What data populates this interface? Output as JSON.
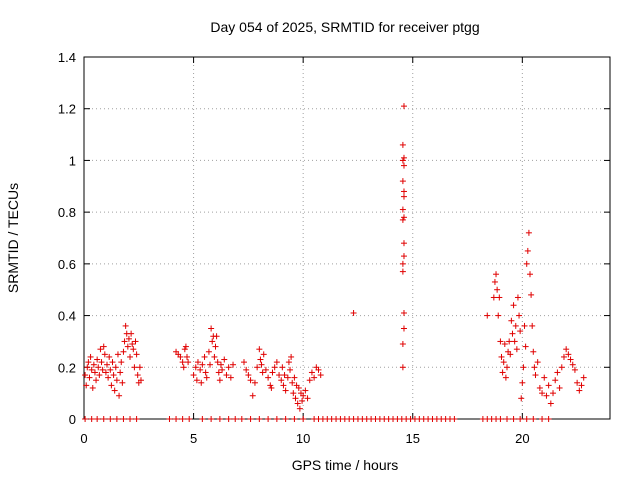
{
  "chart_data": {
    "type": "scatter",
    "title": "Day 054 of 2025, SRMTID for receiver ptgg",
    "xlabel": "GPS time / hours",
    "ylabel": "SRMTID / TECUs",
    "xlim": [
      0,
      24
    ],
    "ylim": [
      0,
      1.4
    ],
    "xticks": [
      0,
      5,
      10,
      15,
      20
    ],
    "xtick_labels": [
      "0",
      "5",
      "10",
      "15",
      "20"
    ],
    "yticks": [
      0,
      0.2,
      0.4,
      0.6,
      0.8,
      1.0,
      1.2,
      1.4
    ],
    "ytick_labels": [
      "0",
      "0.2",
      "0.4",
      "0.6",
      "0.8",
      "1",
      "1.2",
      "1.4"
    ],
    "grid": true,
    "marker": "+",
    "color": "#e00000",
    "series": [
      {
        "name": "SRMTID",
        "points": [
          [
            0.05,
            0.17
          ],
          [
            0.1,
            0.13
          ],
          [
            0.15,
            0.2
          ],
          [
            0.2,
            0.22
          ],
          [
            0.25,
            0.16
          ],
          [
            0.3,
            0.24
          ],
          [
            0.35,
            0.19
          ],
          [
            0.4,
            0.12
          ],
          [
            0.45,
            0.21
          ],
          [
            0.5,
            0.18
          ],
          [
            0.55,
            0.15
          ],
          [
            0.6,
            0.23
          ],
          [
            0.65,
            0.2
          ],
          [
            0.7,
            0.17
          ],
          [
            0.75,
            0.27
          ],
          [
            0.8,
            0.22
          ],
          [
            0.85,
            0.19
          ],
          [
            0.9,
            0.28
          ],
          [
            0.95,
            0.25
          ],
          [
            1.0,
            0.18
          ],
          [
            1.05,
            0.21
          ],
          [
            1.1,
            0.16
          ],
          [
            1.15,
            0.24
          ],
          [
            1.2,
            0.19
          ],
          [
            1.25,
            0.13
          ],
          [
            1.3,
            0.22
          ],
          [
            1.35,
            0.17
          ],
          [
            1.4,
            0.11
          ],
          [
            1.45,
            0.2
          ],
          [
            1.5,
            0.15
          ],
          [
            1.55,
            0.25
          ],
          [
            1.6,
            0.09
          ],
          [
            1.65,
            0.18
          ],
          [
            1.7,
            0.22
          ],
          [
            1.75,
            0.14
          ],
          [
            1.8,
            0.26
          ],
          [
            1.85,
            0.3
          ],
          [
            1.9,
            0.36
          ],
          [
            1.95,
            0.33
          ],
          [
            2.0,
            0.28
          ],
          [
            2.05,
            0.31
          ],
          [
            2.1,
            0.24
          ],
          [
            2.15,
            0.33
          ],
          [
            2.2,
            0.29
          ],
          [
            2.25,
            0.27
          ],
          [
            2.3,
            0.2
          ],
          [
            2.35,
            0.3
          ],
          [
            2.4,
            0.25
          ],
          [
            2.45,
            0.17
          ],
          [
            2.5,
            0.14
          ],
          [
            2.55,
            0.2
          ],
          [
            2.6,
            0.15
          ],
          [
            4.2,
            0.26
          ],
          [
            4.3,
            0.25
          ],
          [
            4.4,
            0.24
          ],
          [
            4.5,
            0.22
          ],
          [
            4.55,
            0.2
          ],
          [
            4.6,
            0.27
          ],
          [
            4.65,
            0.28
          ],
          [
            4.7,
            0.24
          ],
          [
            4.75,
            0.22
          ],
          [
            5.0,
            0.17
          ],
          [
            5.1,
            0.2
          ],
          [
            5.15,
            0.15
          ],
          [
            5.2,
            0.22
          ],
          [
            5.3,
            0.19
          ],
          [
            5.35,
            0.14
          ],
          [
            5.4,
            0.21
          ],
          [
            5.5,
            0.24
          ],
          [
            5.55,
            0.18
          ],
          [
            5.6,
            0.16
          ],
          [
            5.7,
            0.26
          ],
          [
            5.75,
            0.21
          ],
          [
            5.8,
            0.35
          ],
          [
            5.85,
            0.3
          ],
          [
            5.9,
            0.32
          ],
          [
            5.95,
            0.24
          ],
          [
            6.0,
            0.28
          ],
          [
            6.05,
            0.32
          ],
          [
            6.1,
            0.22
          ],
          [
            6.15,
            0.18
          ],
          [
            6.2,
            0.15
          ],
          [
            6.25,
            0.21
          ],
          [
            6.3,
            0.19
          ],
          [
            6.4,
            0.23
          ],
          [
            6.5,
            0.17
          ],
          [
            6.6,
            0.2
          ],
          [
            6.7,
            0.16
          ],
          [
            6.8,
            0.21
          ],
          [
            7.3,
            0.22
          ],
          [
            7.4,
            0.19
          ],
          [
            7.5,
            0.17
          ],
          [
            7.6,
            0.15
          ],
          [
            7.7,
            0.09
          ],
          [
            7.8,
            0.14
          ],
          [
            7.9,
            0.2
          ],
          [
            8.0,
            0.27
          ],
          [
            8.05,
            0.23
          ],
          [
            8.1,
            0.21
          ],
          [
            8.15,
            0.18
          ],
          [
            8.2,
            0.25
          ],
          [
            8.3,
            0.19
          ],
          [
            8.4,
            0.16
          ],
          [
            8.5,
            0.13
          ],
          [
            8.55,
            0.12
          ],
          [
            8.6,
            0.18
          ],
          [
            8.7,
            0.2
          ],
          [
            8.8,
            0.22
          ],
          [
            8.9,
            0.17
          ],
          [
            9.0,
            0.15
          ],
          [
            9.05,
            0.2
          ],
          [
            9.1,
            0.13
          ],
          [
            9.15,
            0.17
          ],
          [
            9.2,
            0.11
          ],
          [
            9.3,
            0.16
          ],
          [
            9.35,
            0.22
          ],
          [
            9.4,
            0.19
          ],
          [
            9.45,
            0.24
          ],
          [
            9.5,
            0.14
          ],
          [
            9.55,
            0.1
          ],
          [
            9.6,
            0.16
          ],
          [
            9.65,
            0.08
          ],
          [
            9.7,
            0.13
          ],
          [
            9.75,
            0.06
          ],
          [
            9.8,
            0.12
          ],
          [
            9.85,
            0.04
          ],
          [
            9.9,
            0.1
          ],
          [
            9.95,
            0.07
          ],
          [
            10.0,
            0.09
          ],
          [
            10.1,
            0.11
          ],
          [
            10.2,
            0.08
          ],
          [
            10.3,
            0.15
          ],
          [
            10.4,
            0.18
          ],
          [
            10.5,
            0.16
          ],
          [
            10.6,
            0.2
          ],
          [
            10.7,
            0.19
          ],
          [
            10.8,
            0.17
          ],
          [
            12.3,
            0.41
          ],
          [
            14.55,
            0.2
          ],
          [
            14.55,
            0.29
          ],
          [
            14.6,
            0.35
          ],
          [
            14.6,
            0.41
          ],
          [
            14.55,
            0.57
          ],
          [
            14.55,
            0.6
          ],
          [
            14.6,
            0.63
          ],
          [
            14.6,
            0.68
          ],
          [
            14.55,
            0.77
          ],
          [
            14.6,
            0.78
          ],
          [
            14.55,
            0.81
          ],
          [
            14.6,
            0.86
          ],
          [
            14.6,
            0.88
          ],
          [
            14.55,
            0.92
          ],
          [
            14.6,
            0.98
          ],
          [
            14.55,
            1.0
          ],
          [
            14.6,
            1.01
          ],
          [
            14.55,
            1.06
          ],
          [
            14.6,
            1.21
          ],
          [
            18.4,
            0.4
          ],
          [
            18.7,
            0.47
          ],
          [
            18.75,
            0.53
          ],
          [
            18.8,
            0.56
          ],
          [
            18.85,
            0.5
          ],
          [
            18.9,
            0.4
          ],
          [
            18.95,
            0.47
          ],
          [
            19.0,
            0.3
          ],
          [
            19.05,
            0.24
          ],
          [
            19.1,
            0.18
          ],
          [
            19.15,
            0.22
          ],
          [
            19.2,
            0.29
          ],
          [
            19.25,
            0.16
          ],
          [
            19.3,
            0.2
          ],
          [
            19.35,
            0.26
          ],
          [
            19.4,
            0.3
          ],
          [
            19.45,
            0.25
          ],
          [
            19.5,
            0.38
          ],
          [
            19.55,
            0.33
          ],
          [
            19.6,
            0.44
          ],
          [
            19.65,
            0.3
          ],
          [
            19.7,
            0.36
          ],
          [
            19.75,
            0.27
          ],
          [
            19.8,
            0.47
          ],
          [
            19.85,
            0.4
          ],
          [
            19.9,
            0.34
          ],
          [
            19.95,
            0.08
          ],
          [
            20.0,
            0.14
          ],
          [
            20.05,
            0.2
          ],
          [
            20.1,
            0.36
          ],
          [
            20.15,
            0.28
          ],
          [
            20.2,
            0.6
          ],
          [
            20.25,
            0.65
          ],
          [
            20.3,
            0.72
          ],
          [
            20.35,
            0.56
          ],
          [
            20.4,
            0.48
          ],
          [
            20.45,
            0.36
          ],
          [
            20.5,
            0.26
          ],
          [
            20.55,
            0.2
          ],
          [
            20.6,
            0.17
          ],
          [
            20.7,
            0.22
          ],
          [
            20.8,
            0.12
          ],
          [
            20.9,
            0.1
          ],
          [
            21.0,
            0.16
          ],
          [
            21.1,
            0.09
          ],
          [
            21.2,
            0.13
          ],
          [
            21.3,
            0.06
          ],
          [
            21.4,
            0.1
          ],
          [
            21.5,
            0.15
          ],
          [
            21.6,
            0.18
          ],
          [
            21.7,
            0.12
          ],
          [
            21.8,
            0.2
          ],
          [
            21.9,
            0.24
          ],
          [
            22.0,
            0.27
          ],
          [
            22.1,
            0.25
          ],
          [
            22.2,
            0.23
          ],
          [
            22.3,
            0.21
          ],
          [
            22.4,
            0.19
          ],
          [
            22.5,
            0.14
          ],
          [
            22.6,
            0.11
          ],
          [
            22.7,
            0.13
          ],
          [
            22.8,
            0.16
          ],
          [
            0.05,
            0
          ],
          [
            0.35,
            0
          ],
          [
            0.6,
            0
          ],
          [
            0.9,
            0
          ],
          [
            1.2,
            0
          ],
          [
            1.5,
            0
          ],
          [
            1.8,
            0
          ],
          [
            2.1,
            0
          ],
          [
            2.4,
            0
          ],
          [
            3.9,
            0
          ],
          [
            4.2,
            0
          ],
          [
            4.5,
            0
          ],
          [
            4.8,
            0
          ],
          [
            5.4,
            0
          ],
          [
            5.8,
            0
          ],
          [
            6.2,
            0
          ],
          [
            6.6,
            0
          ],
          [
            6.9,
            0
          ],
          [
            7.2,
            0
          ],
          [
            7.6,
            0
          ],
          [
            8.0,
            0
          ],
          [
            8.4,
            0
          ],
          [
            8.8,
            0
          ],
          [
            9.2,
            0
          ],
          [
            9.6,
            0
          ],
          [
            10.0,
            0
          ],
          [
            10.5,
            0
          ],
          [
            10.7,
            0
          ],
          [
            10.9,
            0
          ],
          [
            11.1,
            0
          ],
          [
            11.3,
            0
          ],
          [
            11.5,
            0
          ],
          [
            11.7,
            0
          ],
          [
            11.9,
            0
          ],
          [
            12.1,
            0
          ],
          [
            12.3,
            0
          ],
          [
            12.5,
            0
          ],
          [
            12.7,
            0
          ],
          [
            12.9,
            0
          ],
          [
            13.1,
            0
          ],
          [
            13.3,
            0
          ],
          [
            13.5,
            0
          ],
          [
            13.7,
            0
          ],
          [
            13.9,
            0
          ],
          [
            14.1,
            0
          ],
          [
            14.3,
            0
          ],
          [
            14.5,
            0
          ],
          [
            14.7,
            0
          ],
          [
            14.9,
            0
          ],
          [
            15.1,
            0
          ],
          [
            15.3,
            0
          ],
          [
            15.5,
            0
          ],
          [
            15.7,
            0
          ],
          [
            15.9,
            0
          ],
          [
            16.1,
            0
          ],
          [
            16.3,
            0
          ],
          [
            16.5,
            0
          ],
          [
            16.7,
            0
          ],
          [
            16.9,
            0
          ],
          [
            18.2,
            0
          ],
          [
            18.4,
            0
          ],
          [
            18.6,
            0
          ],
          [
            18.8,
            0
          ],
          [
            19.0,
            0
          ],
          [
            19.3,
            0
          ],
          [
            19.6,
            0
          ],
          [
            19.9,
            0
          ],
          [
            20.2,
            0
          ],
          [
            20.5,
            0
          ],
          [
            20.9,
            0
          ],
          [
            21.2,
            0
          ]
        ]
      }
    ]
  }
}
